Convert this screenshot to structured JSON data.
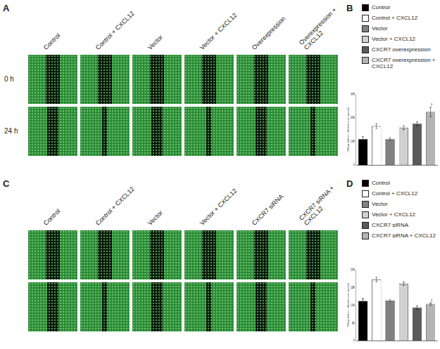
{
  "panels": [
    {
      "label": "A",
      "columns": [
        "Control",
        "Control + CXCL12",
        "Vector",
        "Vector + CXCL12",
        "Overexpression",
        "Overexpression + CXCL12"
      ],
      "rows": [
        "0 h",
        "24 h"
      ]
    },
    {
      "label": "C",
      "columns": [
        "Control",
        "Control + CXCL12",
        "Vector",
        "Vector + CXCL12",
        "CXCR7 siRNA",
        "CXCR7 siRNA + CXCL12"
      ]
    }
  ],
  "chart_data": [
    {
      "panel": "B",
      "type": "bar",
      "categories": [
        "Control",
        "Control + CXCL12",
        "Vector",
        "Vector + CXCL12",
        "CXCR7 overexpression",
        "CXCR7 overexpression + CXCL12"
      ],
      "values": [
        110,
        165,
        110,
        158,
        175,
        225
      ],
      "errors": [
        10,
        10,
        5,
        8,
        8,
        20
      ],
      "colors": [
        "#000000",
        "#ffffff",
        "#808080",
        "#d0d0d0",
        "#5a5a5a",
        "#b4b4b4"
      ],
      "y_label": "Migration distance (μm)",
      "ylim": [
        0,
        300
      ],
      "yticks": [
        0,
        100,
        200,
        300
      ],
      "grid": false,
      "tick_labels": "y",
      "annotations": [
        {
          "index": 5,
          "text": "a"
        }
      ]
    },
    {
      "panel": "D",
      "type": "bar",
      "categories": [
        "Control",
        "Control + CXCL12",
        "Vector",
        "Vector + CXCL12",
        "CXCR7 siRNA",
        "CXCR7 siRNA + CXCL12"
      ],
      "values": [
        112,
        172,
        113,
        160,
        93,
        103
      ],
      "errors": [
        6,
        6,
        3,
        5,
        5,
        3
      ],
      "colors": [
        "#000000",
        "#ffffff",
        "#808080",
        "#d0d0d0",
        "#5a5a5a",
        "#b4b4b4"
      ],
      "y_label": "Migration distance (μm)",
      "ylim": [
        0,
        200
      ],
      "yticks": [
        0,
        50,
        100,
        150,
        200
      ],
      "grid": false,
      "tick_labels": "y",
      "annotations": [
        {
          "index": 5,
          "text": "a"
        }
      ]
    }
  ]
}
